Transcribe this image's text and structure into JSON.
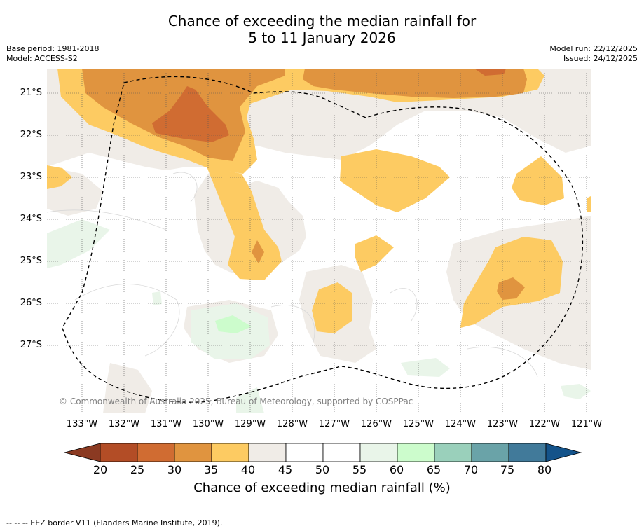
{
  "title_line1": "Chance of exceeding the median rainfall for",
  "title_line2": "5 to 11 January 2026",
  "meta": {
    "base_period": "Base period: 1981-2018",
    "model": "Model: ACCESS-S2",
    "model_run": "Model run: 22/12/2025",
    "issued": "Issued: 24/12/2025"
  },
  "map": {
    "latitude_labels": [
      "21°S",
      "22°S",
      "23°S",
      "24°S",
      "25°S",
      "26°S",
      "27°S"
    ],
    "longitude_labels": [
      "133°W",
      "132°W",
      "131°W",
      "130°W",
      "129°W",
      "128°W",
      "127°W",
      "126°W",
      "125°W",
      "124°W",
      "123°W",
      "122°W",
      "121°W"
    ],
    "copyright": "© Commonwealth of Australia 2025, Bureau of Meteorology, supported by COSPPac",
    "colors": {
      "c20_25": "#b34d26",
      "c25_30": "#d06c32",
      "c30_35": "#e0943f",
      "c35_40": "#fdcb62",
      "c40_45": "#f0ece7",
      "c45_55": "#ffffff",
      "c55_60": "#e9f5e9",
      "c60_65": "#ccfccc"
    }
  },
  "colorbar": {
    "ticks": [
      "20",
      "25",
      "30",
      "35",
      "40",
      "45",
      "50",
      "55",
      "60",
      "65",
      "70",
      "75",
      "80"
    ],
    "label": "Chance of exceeding median rainfall (%)",
    "colors": [
      "#8b3a22",
      "#b34d26",
      "#d06c32",
      "#e0943f",
      "#fdcb62",
      "#f0ece7",
      "#ffffff",
      "#ffffff",
      "#e9f5e9",
      "#ccfccc",
      "#9ad0bb",
      "#6aa3a8",
      "#417a9a",
      "#14538a"
    ]
  },
  "footer": {
    "eez_legend": "--  --  -- EEZ border V11 (Flanders Marine Institute, 2019)."
  }
}
